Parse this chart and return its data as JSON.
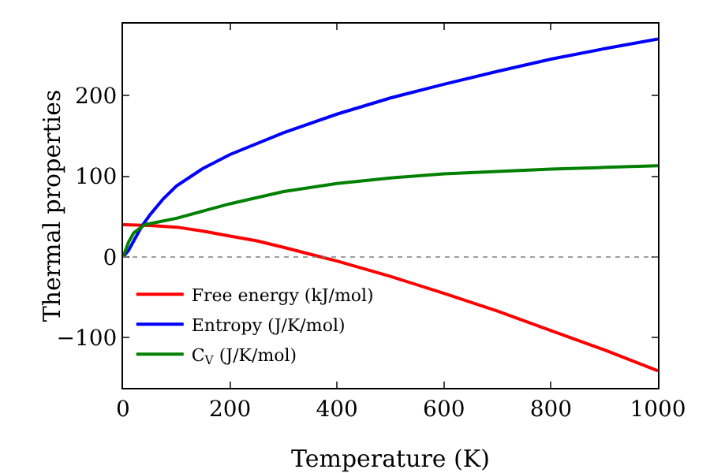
{
  "chart_data": {
    "type": "line",
    "xlabel": "Temperature (K)",
    "ylabel": "Thermal properties",
    "xlim": [
      0,
      1000
    ],
    "xticks": [
      0,
      200,
      400,
      600,
      800,
      1000
    ],
    "ylim": [
      -162,
      289
    ],
    "yticks": [
      {
        "value": -100,
        "label": "−100"
      },
      0,
      100,
      200
    ],
    "grid": false,
    "legend": "bottom left",
    "marker": "none",
    "line_style": "solid",
    "ref_lines": [
      {
        "axis": "y",
        "value": 0,
        "color": "#808080",
        "line_style": "dotted"
      }
    ],
    "series": [
      {
        "name": "Free energy (kJ/mol)",
        "color": "#ff0000",
        "x": [
          0,
          50,
          100,
          150,
          200,
          250,
          300,
          370,
          400,
          500,
          600,
          700,
          800,
          900,
          1000
        ],
        "values": [
          40,
          39,
          37,
          32,
          26,
          20,
          12,
          0,
          -5,
          -24,
          -45,
          -67,
          -91,
          -115,
          -141
        ]
      },
      {
        "name": "Entropy (J/K/mol)",
        "color": "#0000ff",
        "x": [
          0,
          10,
          20,
          35,
          50,
          75,
          100,
          150,
          200,
          300,
          400,
          500,
          600,
          700,
          800,
          900,
          1000
        ],
        "values": [
          0,
          8,
          20,
          38,
          52,
          72,
          88,
          110,
          127,
          154,
          177,
          197,
          214,
          230,
          245,
          258,
          270
        ]
      },
      {
        "name": "C$_{V}$ (J/K/mol)",
        "color": "#008000",
        "x": [
          0,
          10,
          20,
          40,
          70,
          100,
          150,
          200,
          300,
          400,
          500,
          600,
          700,
          800,
          900,
          1000
        ],
        "values": [
          0,
          18,
          30,
          40,
          44,
          48,
          57,
          66,
          81,
          91,
          98,
          103,
          106,
          109,
          111,
          113
        ]
      }
    ]
  }
}
